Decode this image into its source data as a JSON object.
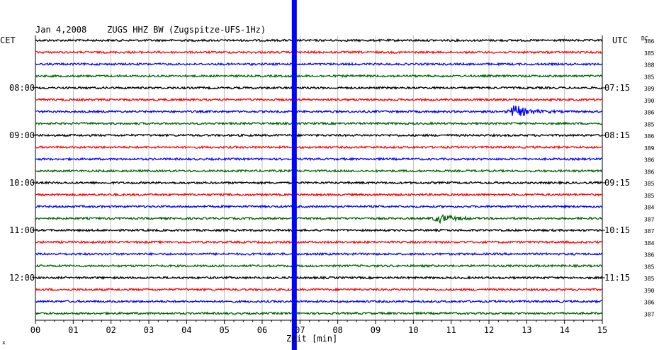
{
  "chart_data": {
    "type": "line",
    "title": "Jan 4,2008    ZUGS HHZ BW (Zugspitze-UFS-1Hz)",
    "left_axis_label": "CET",
    "right_axis_label": "UTC",
    "dc_label": "DC",
    "xlabel": "Zeit [min]",
    "xlim": [
      0,
      15
    ],
    "x_ticks": [
      "00",
      "01",
      "02",
      "03",
      "04",
      "05",
      "06",
      "07",
      "08",
      "09",
      "10",
      "11",
      "12",
      "13",
      "14",
      "15"
    ],
    "trace_count": 24,
    "trace_colors": [
      "#000000",
      "#ff0000",
      "#0000ff",
      "#006400"
    ],
    "left_hour_labels": [
      {
        "trace": 4,
        "label": "08:00"
      },
      {
        "trace": 8,
        "label": "09:00"
      },
      {
        "trace": 12,
        "label": "10:00"
      },
      {
        "trace": 16,
        "label": "11:00"
      },
      {
        "trace": 20,
        "label": "12:00"
      }
    ],
    "right_hour_labels": [
      {
        "trace": 4,
        "label": "07:15"
      },
      {
        "trace": 8,
        "label": "08:15"
      },
      {
        "trace": 12,
        "label": "09:15"
      },
      {
        "trace": 16,
        "label": "10:15"
      },
      {
        "trace": 20,
        "label": "11:15"
      }
    ],
    "dc_values": [
      "386",
      "385",
      "388",
      "385",
      "389",
      "390",
      "386",
      "385",
      "386",
      "389",
      "386",
      "386",
      "385",
      "385",
      "384",
      "387",
      "387",
      "384",
      "386",
      "385",
      "385",
      "390",
      "386",
      "387"
    ],
    "events": [
      {
        "trace": 6,
        "start_min": 12.4,
        "end_min": 14.0,
        "peak_min": 12.7,
        "amplitude": "large"
      },
      {
        "trace": 15,
        "start_min": 9.8,
        "end_min": 11.5,
        "peak_min": 10.7,
        "amplitude": "medium"
      }
    ],
    "spike": {
      "time_min": 6.85,
      "color": "#0000ff",
      "description": "vertical blue overload band across all traces"
    },
    "grid": true
  },
  "corner_mark": "x"
}
